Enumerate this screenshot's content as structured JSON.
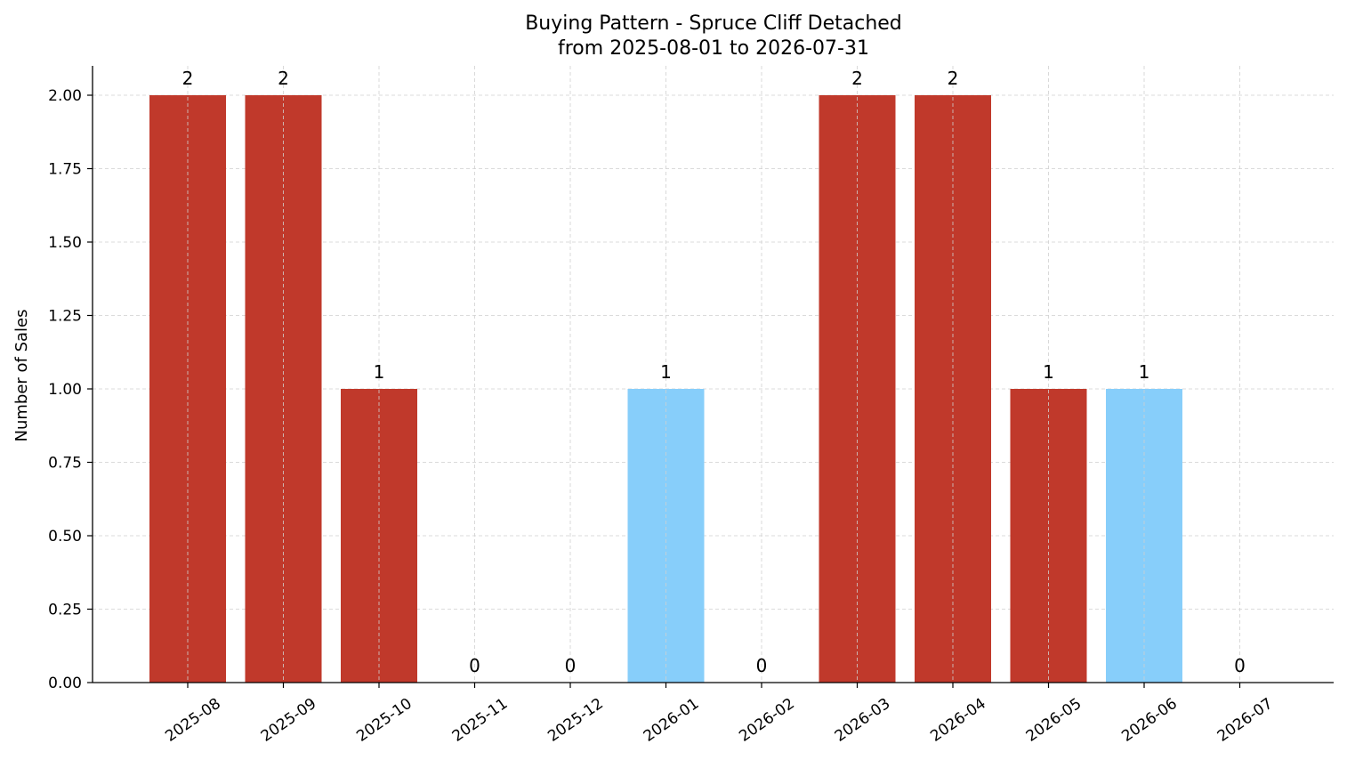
{
  "chart_data": {
    "type": "bar",
    "title": "Buying Pattern - Spruce Cliff Detached",
    "subtitle": "from 2025-08-01 to 2026-07-31",
    "xlabel": "",
    "ylabel": "Number of Sales",
    "categories": [
      "2025-08",
      "2025-09",
      "2025-10",
      "2025-11",
      "2025-12",
      "2026-01",
      "2026-02",
      "2026-03",
      "2026-04",
      "2026-05",
      "2026-06",
      "2026-07"
    ],
    "values": [
      2,
      2,
      1,
      0,
      0,
      1,
      0,
      2,
      2,
      1,
      1,
      0
    ],
    "bar_colors": [
      "#c0392b",
      "#c0392b",
      "#c0392b",
      "#c0392b",
      "#c0392b",
      "#87cefa",
      "#c0392b",
      "#c0392b",
      "#c0392b",
      "#c0392b",
      "#87cefa",
      "#c0392b"
    ],
    "ylim": [
      0,
      2.1
    ],
    "yticks": [
      "0.00",
      "0.25",
      "0.50",
      "0.75",
      "1.00",
      "1.25",
      "1.50",
      "1.75",
      "2.00"
    ],
    "grid": true,
    "legend": "none"
  }
}
